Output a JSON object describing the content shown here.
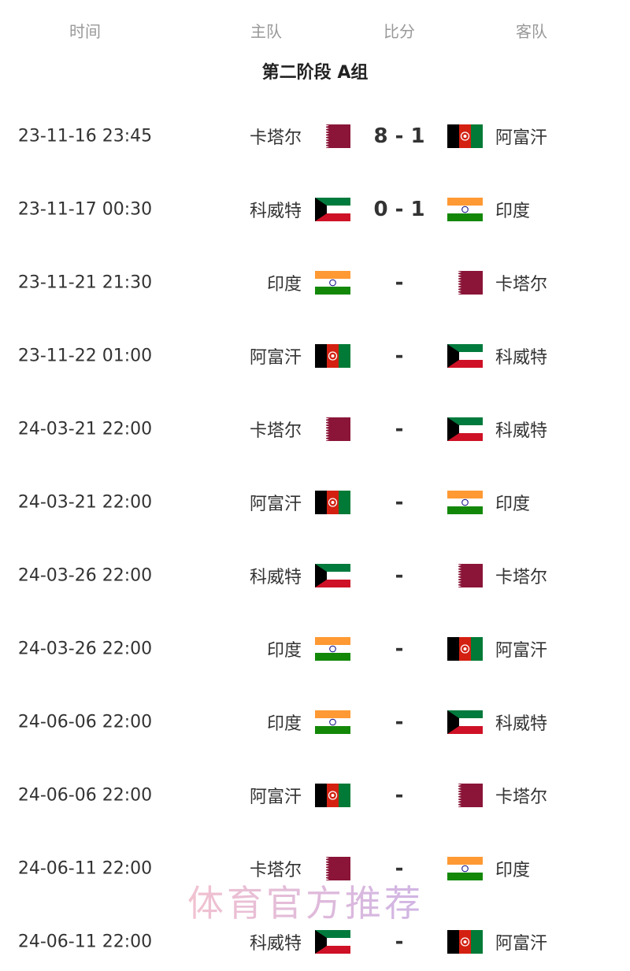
{
  "header": {
    "time": "时间",
    "home": "主队",
    "score": "比分",
    "away": "客队"
  },
  "group_title": "第二阶段 A组",
  "colors": {
    "qatar": "#8a1538",
    "afghanistan_black": "#000000",
    "afghanistan_red": "#d32011",
    "afghanistan_green": "#007a36",
    "kuwait_green": "#007a3d",
    "kuwait_red": "#ce1126",
    "india_saffron": "#ff9933",
    "india_green": "#138808",
    "india_chakra": "#000080"
  },
  "matches": [
    {
      "time": "23-11-16 23:45",
      "home": "卡塔尔",
      "home_flag": "qatar",
      "score": "8 - 1",
      "away": "阿富汗",
      "away_flag": "afghanistan"
    },
    {
      "time": "23-11-17 00:30",
      "home": "科威特",
      "home_flag": "kuwait",
      "score": "0 - 1",
      "away": "印度",
      "away_flag": "india"
    },
    {
      "time": "23-11-21 21:30",
      "home": "印度",
      "home_flag": "india",
      "score": "-",
      "away": "卡塔尔",
      "away_flag": "qatar"
    },
    {
      "time": "23-11-22 01:00",
      "home": "阿富汗",
      "home_flag": "afghanistan",
      "score": "-",
      "away": "科威特",
      "away_flag": "kuwait"
    },
    {
      "time": "24-03-21 22:00",
      "home": "卡塔尔",
      "home_flag": "qatar",
      "score": "-",
      "away": "科威特",
      "away_flag": "kuwait"
    },
    {
      "time": "24-03-21 22:00",
      "home": "阿富汗",
      "home_flag": "afghanistan",
      "score": "-",
      "away": "印度",
      "away_flag": "india"
    },
    {
      "time": "24-03-26 22:00",
      "home": "科威特",
      "home_flag": "kuwait",
      "score": "-",
      "away": "卡塔尔",
      "away_flag": "qatar"
    },
    {
      "time": "24-03-26 22:00",
      "home": "印度",
      "home_flag": "india",
      "score": "-",
      "away": "阿富汗",
      "away_flag": "afghanistan"
    },
    {
      "time": "24-06-06 22:00",
      "home": "印度",
      "home_flag": "india",
      "score": "-",
      "away": "科威特",
      "away_flag": "kuwait"
    },
    {
      "time": "24-06-06 22:00",
      "home": "阿富汗",
      "home_flag": "afghanistan",
      "score": "-",
      "away": "卡塔尔",
      "away_flag": "qatar"
    },
    {
      "time": "24-06-11 22:00",
      "home": "卡塔尔",
      "home_flag": "qatar",
      "score": "-",
      "away": "印度",
      "away_flag": "india"
    },
    {
      "time": "24-06-11 22:00",
      "home": "科威特",
      "home_flag": "kuwait",
      "score": "-",
      "away": "阿富汗",
      "away_flag": "afghanistan"
    }
  ],
  "watermark": "体育官方推荐"
}
